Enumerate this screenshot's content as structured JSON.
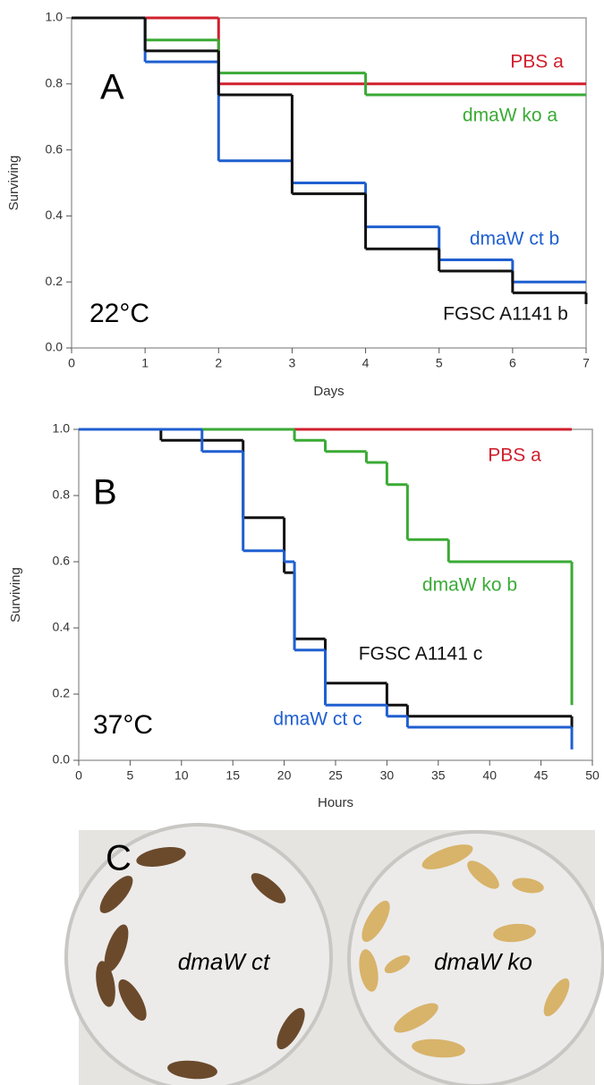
{
  "chart_data": [
    {
      "type": "step",
      "panel_label": "A",
      "condition": "22°C",
      "x_label": "Days",
      "y_label": "Surviving",
      "xlim": [
        0,
        7
      ],
      "xticks": [
        0,
        1,
        2,
        3,
        4,
        5,
        6,
        7
      ],
      "ylim": [
        0,
        1
      ],
      "yticks": [
        {
          "value": 0,
          "label": "0.0"
        },
        0.2,
        0.4,
        0.6,
        0.8,
        {
          "value": 1,
          "label": "1.0"
        }
      ],
      "series": [
        {
          "name": "PBS a",
          "color": "#d0202e",
          "x": [
            0,
            1,
            2,
            7
          ],
          "values": [
            1,
            1,
            0.8,
            0.8
          ]
        },
        {
          "name": "dmaW ko a",
          "color": "#3aaa35",
          "x": [
            0,
            1,
            2,
            4,
            7
          ],
          "values": [
            1,
            0.933,
            0.833,
            0.767,
            0.767
          ]
        },
        {
          "name": "dmaW ct b",
          "color": "#1f5fd0",
          "x": [
            0,
            1,
            2,
            3,
            4,
            5,
            6,
            7
          ],
          "values": [
            1,
            0.867,
            0.567,
            0.5,
            0.367,
            0.267,
            0.2,
            0.2
          ]
        },
        {
          "name": "FGSC A1141 b",
          "color": "#111111",
          "x": [
            0,
            1,
            2,
            3,
            4,
            5,
            6,
            7,
            7
          ],
          "values": [
            1,
            0.9,
            0.767,
            0.467,
            0.3,
            0.233,
            0.167,
            0.167,
            0.133
          ]
        }
      ]
    },
    {
      "type": "step",
      "panel_label": "B",
      "condition": "37°C",
      "x_label": "Hours",
      "y_label": "Surviving",
      "xlim": [
        0,
        50
      ],
      "xticks": [
        0,
        5,
        10,
        15,
        20,
        25,
        30,
        35,
        40,
        45,
        50
      ],
      "ylim": [
        0,
        1
      ],
      "yticks": [
        {
          "value": 0,
          "label": "0.0"
        },
        0.2,
        0.4,
        0.6,
        0.8,
        {
          "value": 1,
          "label": "1.0"
        }
      ],
      "series": [
        {
          "name": "PBS a",
          "color": "#d0202e",
          "x": [
            0,
            48
          ],
          "values": [
            1,
            1
          ]
        },
        {
          "name": "dmaW ko b",
          "color": "#3aaa35",
          "x": [
            0,
            21,
            24,
            28,
            30,
            32,
            36,
            48
          ],
          "values": [
            1,
            0.967,
            0.933,
            0.9,
            0.833,
            0.667,
            0.6,
            0.167
          ]
        },
        {
          "name": "FGSC A1141 c",
          "color": "#111111",
          "x": [
            0,
            8,
            16,
            20,
            21,
            24,
            30,
            32,
            48
          ],
          "values": [
            1,
            0.967,
            0.733,
            0.567,
            0.367,
            0.233,
            0.167,
            0.133,
            0.1
          ]
        },
        {
          "name": "dmaW ct c",
          "color": "#1f5fd0",
          "x": [
            0,
            12,
            16,
            20,
            21,
            24,
            30,
            32,
            48
          ],
          "values": [
            1,
            0.933,
            0.633,
            0.6,
            0.333,
            0.167,
            0.133,
            0.1,
            0.033
          ]
        }
      ]
    }
  ],
  "photo": {
    "panel_label": "C",
    "captions": [
      "dmaW ct",
      "dmaW ko"
    ]
  }
}
